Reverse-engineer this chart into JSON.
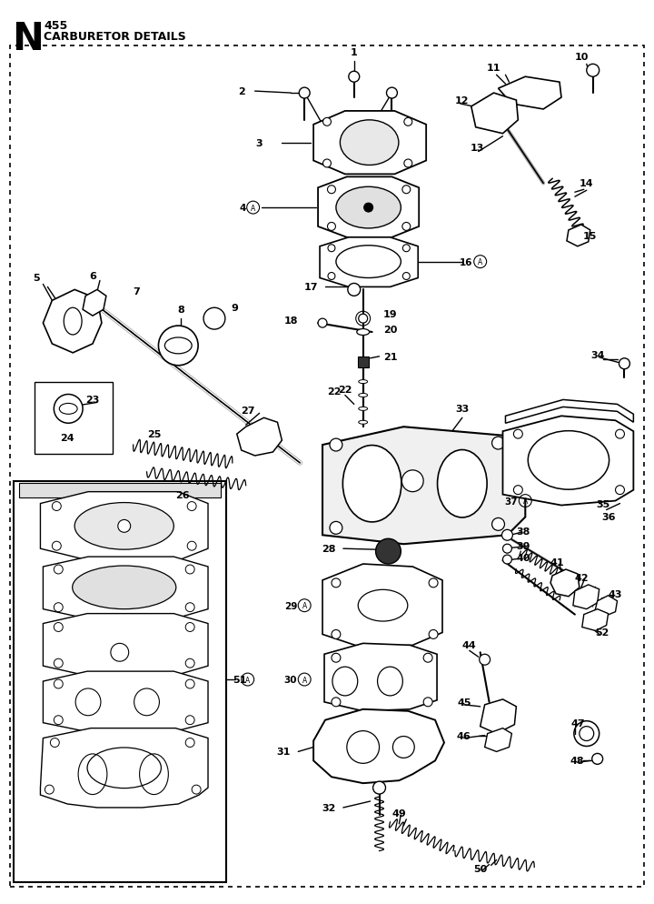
{
  "title_letter": "N",
  "title_model": "455",
  "title_desc": "CARBURETOR DETAILS",
  "bg_color": "#ffffff",
  "line_color": "#000000",
  "text_color": "#000000",
  "fig_width": 7.2,
  "fig_height": 9.95,
  "dpi": 100
}
